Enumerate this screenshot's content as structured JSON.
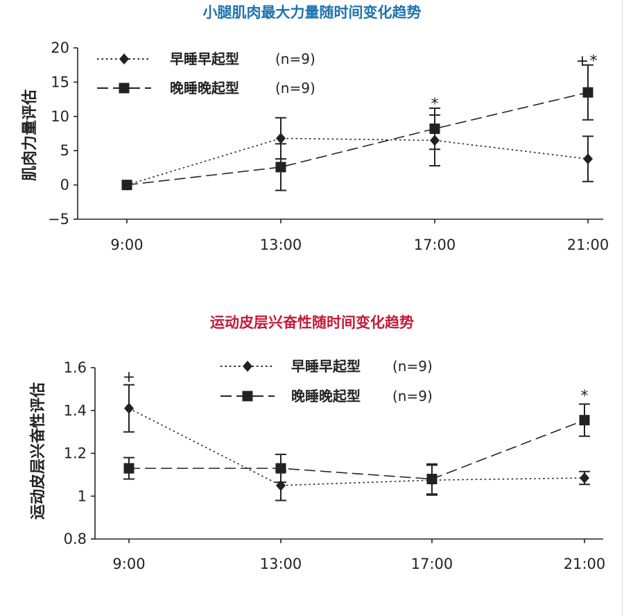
{
  "colors": {
    "title_top": "#1a73b0",
    "title_bottom": "#c41a35",
    "ink": "#222222"
  },
  "chart_data": [
    {
      "type": "line",
      "title": "小腿肌肉最大力量随时间变化趋势",
      "xlabel": "",
      "ylabel": "肌肉力量评估",
      "categories": [
        "9:00",
        "13:00",
        "17:00",
        "21:00"
      ],
      "ylim": [
        -5,
        20
      ],
      "yticks": [
        "−5",
        "0",
        "5",
        "10",
        "15",
        "20"
      ],
      "ytick_values": [
        -5,
        0,
        5,
        10,
        15,
        20
      ],
      "grid": false,
      "legend_position": "top-left",
      "series": [
        {
          "name": "早睡早起型",
          "n_label": "(n=9)",
          "marker": "diamond",
          "line": "dotted",
          "values": [
            0,
            6.8,
            6.5,
            3.8
          ],
          "err": [
            null,
            3.0,
            3.7,
            3.3
          ]
        },
        {
          "name": "晚睡晚起型",
          "n_label": "(n=9)",
          "marker": "square",
          "line": "dashed",
          "values": [
            0,
            2.6,
            8.2,
            13.5
          ],
          "err": [
            null,
            3.4,
            3.0,
            4.0
          ]
        }
      ],
      "annotations": [
        {
          "text": "*",
          "category": "17:00",
          "y": 11.9
        },
        {
          "text": "+",
          "category": "21:00",
          "y": 18.2
        },
        {
          "text": "*",
          "category": "21:00",
          "y": 18.2
        }
      ]
    },
    {
      "type": "line",
      "title": "运动皮层兴奋性随时间变化趋势",
      "xlabel": "",
      "ylabel": "运动皮层兴奋性评估",
      "categories": [
        "9:00",
        "13:00",
        "17:00",
        "21:00"
      ],
      "ylim": [
        0.8,
        1.6
      ],
      "yticks": [
        "0.8",
        "1",
        "1.2",
        "1.4",
        "1.6"
      ],
      "ytick_values": [
        0.8,
        1.0,
        1.2,
        1.4,
        1.6
      ],
      "grid": false,
      "legend_position": "top-center",
      "series": [
        {
          "name": "早睡早起型",
          "n_label": "(n=9)",
          "marker": "diamond",
          "line": "dotted",
          "values": [
            1.41,
            1.05,
            1.075,
            1.085
          ],
          "err": [
            0.11,
            0.07,
            0.07,
            0.03
          ]
        },
        {
          "name": "晚睡晚起型",
          "n_label": "(n=9)",
          "marker": "square",
          "line": "dashed",
          "values": [
            1.13,
            1.13,
            1.08,
            1.355
          ],
          "err": [
            0.05,
            0.065,
            0.07,
            0.075
          ]
        }
      ],
      "annotations": [
        {
          "text": "+",
          "category": "9:00",
          "y": 1.56
        },
        {
          "text": "*",
          "category": "21:00",
          "y": 1.47
        }
      ]
    }
  ]
}
